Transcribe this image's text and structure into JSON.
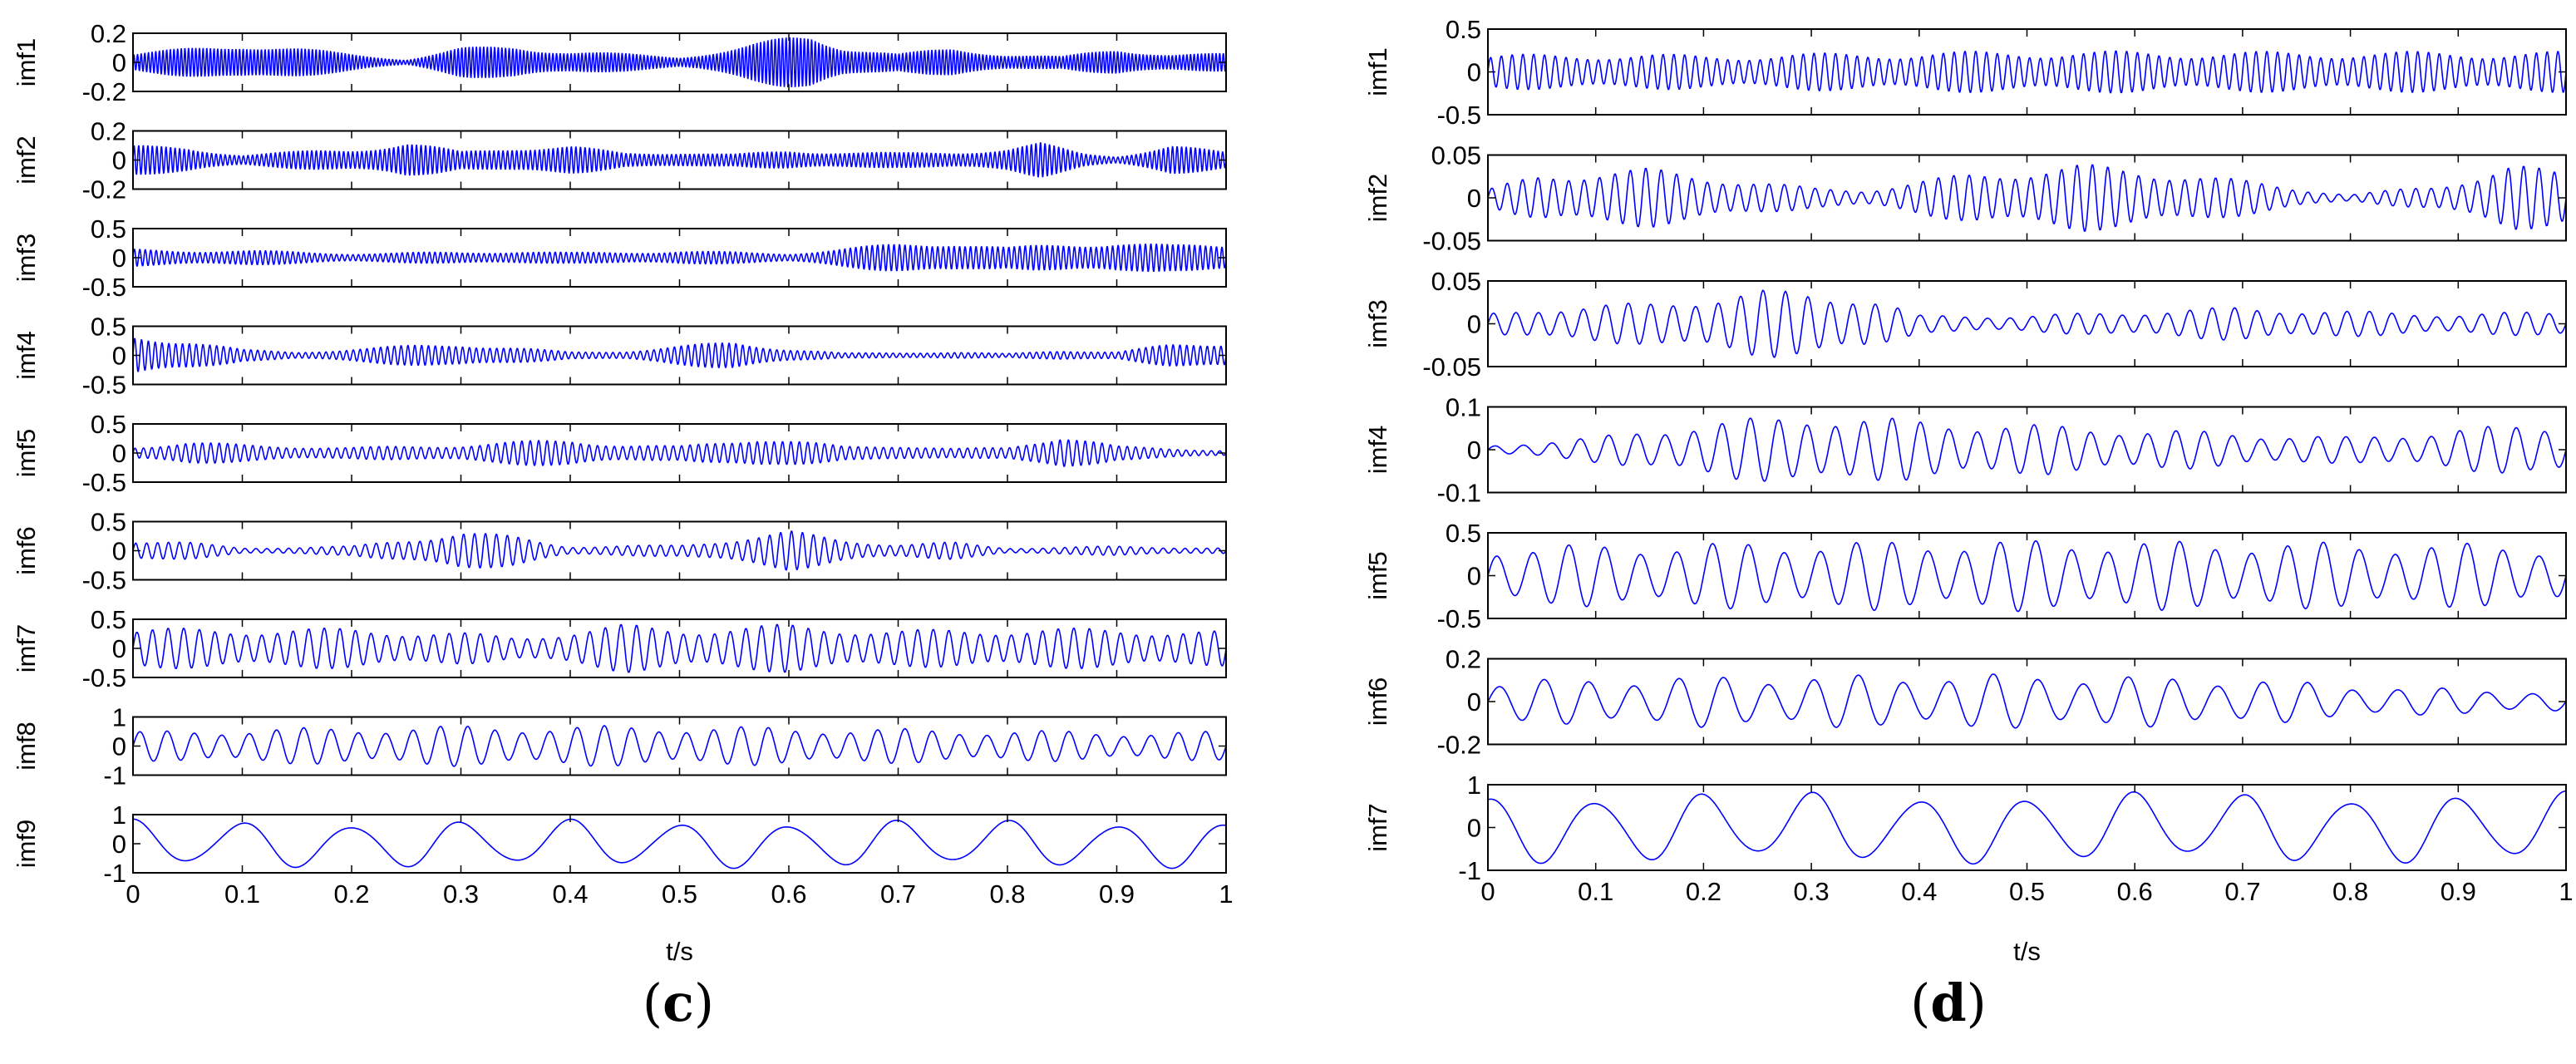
{
  "colors": {
    "signal": "#0000ff",
    "axes": "#000000",
    "background": "#ffffff"
  },
  "chart_data": [
    {
      "panel_label": "c",
      "type": "line",
      "xlabel": "t/s",
      "xlim": [
        0,
        1
      ],
      "xticks": [
        0,
        0.1,
        0.2,
        0.3,
        0.4,
        0.5,
        0.6,
        0.7,
        0.8,
        0.9,
        1
      ],
      "xtick_labels": [
        "0",
        "0.1",
        "0.2",
        "0.3",
        "0.4",
        "0.5",
        "0.6",
        "0.7",
        "0.8",
        "0.9",
        "1"
      ],
      "grid": false,
      "series": [
        {
          "name": "imf1",
          "ylim": [
            -0.2,
            0.2
          ],
          "yticks": [
            -0.2,
            0,
            0.2
          ],
          "ytick_labels": [
            "-0.2",
            "0",
            "0.2"
          ],
          "cycles": 300,
          "envelope": [
            [
              0,
              0.06
            ],
            [
              0.05,
              0.1
            ],
            [
              0.1,
              0.14
            ],
            [
              0.15,
              0.1
            ],
            [
              0.2,
              0.06
            ],
            [
              0.25,
              0.02
            ],
            [
              0.3,
              0.1
            ],
            [
              0.35,
              0.12
            ],
            [
              0.4,
              0.08
            ],
            [
              0.45,
              0.06
            ],
            [
              0.5,
              0.04
            ],
            [
              0.55,
              0.1
            ],
            [
              0.6,
              0.18
            ],
            [
              0.62,
              0.2
            ],
            [
              0.65,
              0.12
            ],
            [
              0.7,
              0.06
            ],
            [
              0.75,
              0.1
            ],
            [
              0.8,
              0.06
            ],
            [
              0.85,
              0.04
            ],
            [
              0.9,
              0.1
            ],
            [
              0.95,
              0.06
            ],
            [
              1,
              0.06
            ]
          ]
        },
        {
          "name": "imf2",
          "ylim": [
            -0.2,
            0.2
          ],
          "yticks": [
            -0.2,
            0,
            0.2
          ],
          "ytick_labels": [
            "-0.2",
            "0",
            "0.2"
          ],
          "cycles": 240,
          "envelope": [
            [
              0,
              0.1
            ],
            [
              0.05,
              0.09
            ],
            [
              0.1,
              0.04
            ],
            [
              0.15,
              0.06
            ],
            [
              0.2,
              0.08
            ],
            [
              0.25,
              0.13
            ],
            [
              0.3,
              0.06
            ],
            [
              0.35,
              0.1
            ],
            [
              0.4,
              0.1
            ],
            [
              0.45,
              0.05
            ],
            [
              0.5,
              0.06
            ],
            [
              0.55,
              0.04
            ],
            [
              0.6,
              0.07
            ],
            [
              0.65,
              0.06
            ],
            [
              0.7,
              0.05
            ],
            [
              0.75,
              0.06
            ],
            [
              0.8,
              0.08
            ],
            [
              0.83,
              0.12
            ],
            [
              0.87,
              0.05
            ],
            [
              0.9,
              0.03
            ],
            [
              0.95,
              0.1
            ],
            [
              1,
              0.06
            ]
          ]
        },
        {
          "name": "imf3",
          "ylim": [
            -0.5,
            0.5
          ],
          "yticks": [
            -0.5,
            0,
            0.5
          ],
          "ytick_labels": [
            "-0.5",
            "0",
            "0.5"
          ],
          "cycles": 200,
          "envelope": [
            [
              0,
              0.15
            ],
            [
              0.1,
              0.13
            ],
            [
              0.2,
              0.08
            ],
            [
              0.3,
              0.1
            ],
            [
              0.35,
              0.12
            ],
            [
              0.4,
              0.09
            ],
            [
              0.5,
              0.12
            ],
            [
              0.6,
              0.08
            ],
            [
              0.7,
              0.25
            ],
            [
              0.75,
              0.3
            ],
            [
              0.8,
              0.18
            ],
            [
              0.85,
              0.25
            ],
            [
              0.9,
              0.3
            ],
            [
              0.95,
              0.22
            ],
            [
              1,
              0.25
            ]
          ]
        },
        {
          "name": "imf4",
          "ylim": [
            -0.5,
            0.5
          ],
          "yticks": [
            -0.5,
            0,
            0.5
          ],
          "ytick_labels": [
            "-0.5",
            "0",
            "0.5"
          ],
          "cycles": 160,
          "envelope": [
            [
              0,
              0.35
            ],
            [
              0.05,
              0.3
            ],
            [
              0.1,
              0.1
            ],
            [
              0.15,
              0.06
            ],
            [
              0.2,
              0.12
            ],
            [
              0.3,
              0.22
            ],
            [
              0.35,
              0.14
            ],
            [
              0.4,
              0.06
            ],
            [
              0.45,
              0.08
            ],
            [
              0.55,
              0.25
            ],
            [
              0.6,
              0.12
            ],
            [
              0.65,
              0.04
            ],
            [
              0.75,
              0.06
            ],
            [
              0.8,
              0.03
            ],
            [
              0.85,
              0.1
            ],
            [
              0.9,
              0.06
            ],
            [
              0.95,
              0.2
            ],
            [
              1,
              0.25
            ]
          ]
        },
        {
          "name": "imf5",
          "ylim": [
            -0.5,
            0.5
          ],
          "yticks": [
            -0.5,
            0,
            0.5
          ],
          "ytick_labels": [
            "-0.5",
            "0",
            "0.5"
          ],
          "cycles": 130,
          "envelope": [
            [
              0,
              0.12
            ],
            [
              0.05,
              0.2
            ],
            [
              0.1,
              0.15
            ],
            [
              0.2,
              0.1
            ],
            [
              0.3,
              0.15
            ],
            [
              0.4,
              0.25
            ],
            [
              0.45,
              0.15
            ],
            [
              0.5,
              0.12
            ],
            [
              0.57,
              0.3
            ],
            [
              0.65,
              0.12
            ],
            [
              0.7,
              0.15
            ],
            [
              0.75,
              0.08
            ],
            [
              0.8,
              0.1
            ],
            [
              0.85,
              0.35
            ],
            [
              0.9,
              0.12
            ],
            [
              1,
              0.05
            ]
          ]
        },
        {
          "name": "imf6",
          "ylim": [
            -0.5,
            0.5
          ],
          "yticks": [
            -0.5,
            0,
            0.5
          ],
          "ytick_labels": [
            "-0.5",
            "0",
            "0.5"
          ],
          "cycles": 100,
          "envelope": [
            [
              0,
              0.2
            ],
            [
              0.05,
              0.15
            ],
            [
              0.1,
              0.05
            ],
            [
              0.2,
              0.08
            ],
            [
              0.3,
              0.35
            ],
            [
              0.35,
              0.25
            ],
            [
              0.4,
              0.08
            ],
            [
              0.5,
              0.1
            ],
            [
              0.6,
              0.35
            ],
            [
              0.65,
              0.2
            ],
            [
              0.7,
              0.12
            ],
            [
              0.75,
              0.15
            ],
            [
              0.8,
              0.05
            ],
            [
              0.9,
              0.08
            ],
            [
              1,
              0.05
            ]
          ]
        },
        {
          "name": "imf7",
          "ylim": [
            -0.5,
            0.5
          ],
          "yticks": [
            -0.5,
            0,
            0.5
          ],
          "ytick_labels": [
            "-0.5",
            "0",
            "0.5"
          ],
          "cycles": 70,
          "envelope": [
            [
              0,
              0.35
            ],
            [
              0.1,
              0.35
            ],
            [
              0.2,
              0.35
            ],
            [
              0.3,
              0.28
            ],
            [
              0.35,
              0.2
            ],
            [
              0.45,
              0.42
            ],
            [
              0.5,
              0.35
            ],
            [
              0.6,
              0.42
            ],
            [
              0.7,
              0.32
            ],
            [
              0.8,
              0.35
            ],
            [
              0.9,
              0.35
            ],
            [
              1,
              0.3
            ]
          ]
        },
        {
          "name": "imf8",
          "ylim": [
            -1,
            1
          ],
          "yticks": [
            -1,
            0,
            1
          ],
          "ytick_labels": [
            "-1",
            "0",
            "1"
          ],
          "cycles": 40,
          "envelope": [
            [
              0,
              0.5
            ],
            [
              0.1,
              0.6
            ],
            [
              0.3,
              0.7
            ],
            [
              0.5,
              0.7
            ],
            [
              0.7,
              0.6
            ],
            [
              0.9,
              0.5
            ],
            [
              1,
              0.5
            ]
          ]
        },
        {
          "name": "imf9",
          "ylim": [
            -1,
            1
          ],
          "yticks": [
            -1,
            0,
            1
          ],
          "ytick_labels": [
            "-1",
            "0",
            "1"
          ],
          "cycles": 10,
          "phase_turns": 0.25,
          "envelope": [
            [
              0,
              0.85
            ],
            [
              1,
              0.85
            ]
          ]
        }
      ]
    },
    {
      "panel_label": "d",
      "type": "line",
      "xlabel": "t/s",
      "xlim": [
        0,
        1
      ],
      "xticks": [
        0,
        0.1,
        0.2,
        0.3,
        0.4,
        0.5,
        0.6,
        0.7,
        0.8,
        0.9,
        1
      ],
      "xtick_labels": [
        "0",
        "0.1",
        "0.2",
        "0.3",
        "0.4",
        "0.5",
        "0.6",
        "0.7",
        "0.8",
        "0.9",
        "1"
      ],
      "grid": false,
      "series": [
        {
          "name": "imf1",
          "ylim": [
            -0.5,
            0.5
          ],
          "yticks": [
            -0.5,
            0,
            0.5
          ],
          "ytick_labels": [
            "-0.5",
            "0",
            "0.5"
          ],
          "cycles": 100,
          "envelope": [
            [
              0,
              0.2
            ],
            [
              0.1,
              0.22
            ],
            [
              0.2,
              0.2
            ],
            [
              0.3,
              0.22
            ],
            [
              0.5,
              0.25
            ],
            [
              0.7,
              0.24
            ],
            [
              0.9,
              0.24
            ],
            [
              1,
              0.24
            ]
          ]
        },
        {
          "name": "imf2",
          "ylim": [
            -0.05,
            0.05
          ],
          "yticks": [
            -0.05,
            0,
            0.05
          ],
          "ytick_labels": [
            "-0.05",
            "0",
            "0.05"
          ],
          "cycles": 70,
          "envelope": [
            [
              0,
              0.01
            ],
            [
              0.05,
              0.03
            ],
            [
              0.15,
              0.035
            ],
            [
              0.25,
              0.02
            ],
            [
              0.3,
              0.012
            ],
            [
              0.35,
              0.01
            ],
            [
              0.45,
              0.03
            ],
            [
              0.55,
              0.04
            ],
            [
              0.65,
              0.03
            ],
            [
              0.75,
              0.012
            ],
            [
              0.8,
              0.004
            ],
            [
              0.88,
              0.015
            ],
            [
              0.95,
              0.04
            ],
            [
              1,
              0.03
            ]
          ]
        },
        {
          "name": "imf3",
          "ylim": [
            -0.05,
            0.05
          ],
          "yticks": [
            -0.05,
            0,
            0.05
          ],
          "ytick_labels": [
            "-0.05",
            "0",
            "0.05"
          ],
          "cycles": 48,
          "envelope": [
            [
              0,
              0.012
            ],
            [
              0.05,
              0.02
            ],
            [
              0.15,
              0.025
            ],
            [
              0.25,
              0.04
            ],
            [
              0.35,
              0.035
            ],
            [
              0.4,
              0.01
            ],
            [
              0.5,
              0.01
            ],
            [
              0.6,
              0.015
            ],
            [
              0.7,
              0.02
            ],
            [
              0.8,
              0.015
            ],
            [
              0.9,
              0.012
            ],
            [
              1,
              0.015
            ]
          ]
        },
        {
          "name": "imf4",
          "ylim": [
            -0.1,
            0.1
          ],
          "yticks": [
            -0.1,
            0,
            0.1
          ],
          "ytick_labels": [
            "-0.1",
            "0",
            "0.1"
          ],
          "cycles": 38,
          "envelope": [
            [
              0,
              0.01
            ],
            [
              0.1,
              0.03
            ],
            [
              0.2,
              0.065
            ],
            [
              0.3,
              0.085
            ],
            [
              0.4,
              0.07
            ],
            [
              0.5,
              0.06
            ],
            [
              0.6,
              0.05
            ],
            [
              0.7,
              0.04
            ],
            [
              0.8,
              0.03
            ],
            [
              0.9,
              0.05
            ],
            [
              1,
              0.065
            ]
          ]
        },
        {
          "name": "imf5",
          "ylim": [
            -0.5,
            0.5
          ],
          "yticks": [
            -0.5,
            0,
            0.5
          ],
          "ytick_labels": [
            "-0.5",
            "0",
            "0.5"
          ],
          "cycles": 30,
          "envelope": [
            [
              0,
              0.35
            ],
            [
              0.3,
              0.4
            ],
            [
              0.5,
              0.42
            ],
            [
              0.7,
              0.4
            ],
            [
              0.9,
              0.38
            ],
            [
              1,
              0.35
            ]
          ]
        },
        {
          "name": "imf6",
          "ylim": [
            -0.2,
            0.2
          ],
          "yticks": [
            -0.2,
            0,
            0.2
          ],
          "ytick_labels": [
            "-0.2",
            "0",
            "0.2"
          ],
          "cycles": 24,
          "envelope": [
            [
              0,
              0.1
            ],
            [
              0.2,
              0.12
            ],
            [
              0.5,
              0.13
            ],
            [
              0.7,
              0.11
            ],
            [
              0.8,
              0.08
            ],
            [
              0.9,
              0.06
            ],
            [
              1,
              0.05
            ]
          ]
        },
        {
          "name": "imf7",
          "ylim": [
            -1,
            1
          ],
          "yticks": [
            -1,
            0,
            1
          ],
          "ytick_labels": [
            "-1",
            "0",
            "1"
          ],
          "cycles": 10,
          "phase_turns": 0.25,
          "envelope": [
            [
              0,
              0.85
            ],
            [
              1,
              0.85
            ]
          ]
        }
      ]
    }
  ]
}
